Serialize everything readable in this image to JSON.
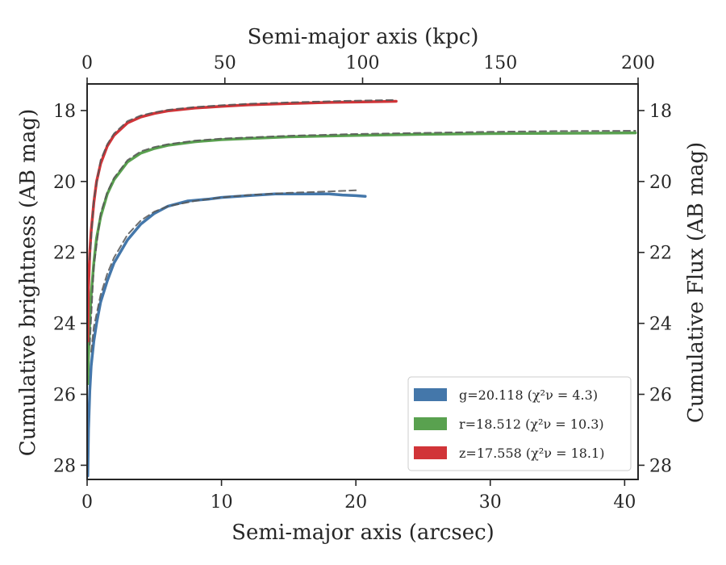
{
  "chart_data": {
    "type": "line",
    "xlabel_bottom": "Semi-major axis (arcsec)",
    "xlabel_top": "Semi-major axis (kpc)",
    "ylabel_left": "Cumulative brightness (AB mag)",
    "ylabel_right": "Cumulative Flux (AB mag)",
    "xlim": [
      0,
      41
    ],
    "ylim": [
      17.25,
      28.4
    ],
    "y_inverted": true,
    "top_xlim": [
      0,
      200
    ],
    "x_ticks": [
      0,
      10,
      20,
      30,
      40
    ],
    "y_ticks": [
      18,
      20,
      22,
      24,
      26,
      28
    ],
    "top_x_ticks": [
      0,
      50,
      100,
      150,
      200
    ],
    "grid": false,
    "legend_position": "lower-right",
    "series": [
      {
        "name": "g",
        "legend_label": "g=20.118",
        "legend_chi": "(χ²ν = 4.3)",
        "color": "#4477aa",
        "x": [
          0.05,
          0.1,
          0.2,
          0.3,
          0.5,
          0.7,
          1.0,
          1.5,
          2.0,
          3.0,
          4.0,
          5.0,
          6.0,
          7.5,
          9.0,
          10.0,
          12.0,
          14.0,
          16.0,
          18.0,
          19.0,
          20.0,
          20.7
        ],
        "y": [
          28.3,
          27.0,
          25.9,
          25.2,
          24.5,
          24.0,
          23.4,
          22.8,
          22.3,
          21.65,
          21.2,
          20.9,
          20.7,
          20.55,
          20.5,
          20.45,
          20.4,
          20.35,
          20.35,
          20.35,
          20.38,
          20.4,
          20.42
        ]
      },
      {
        "name": "g-model",
        "color": "#555555",
        "dashed": true,
        "x": [
          0.3,
          0.5,
          1.0,
          1.5,
          2.0,
          3.0,
          4.0,
          5.0,
          6.0,
          8.0,
          10.0,
          12.0,
          15.0,
          18.0,
          20.0
        ],
        "y": [
          24.8,
          24.1,
          23.2,
          22.6,
          22.15,
          21.5,
          21.1,
          20.85,
          20.7,
          20.55,
          20.45,
          20.38,
          20.32,
          20.28,
          20.25
        ]
      },
      {
        "name": "r",
        "legend_label": "r=18.512",
        "legend_chi": "(χ²ν = 10.3)",
        "color": "#59a14f",
        "x": [
          0.05,
          0.1,
          0.2,
          0.3,
          0.5,
          0.7,
          1.0,
          1.5,
          2.0,
          3.0,
          4.0,
          5.0,
          6.0,
          8.0,
          10.0,
          15.0,
          20.0,
          25.0,
          30.0,
          35.0,
          40.8
        ],
        "y": [
          25.7,
          24.9,
          23.9,
          23.2,
          22.3,
          21.6,
          21.0,
          20.35,
          19.95,
          19.45,
          19.2,
          19.07,
          18.98,
          18.88,
          18.82,
          18.74,
          18.7,
          18.67,
          18.65,
          18.64,
          18.63
        ]
      },
      {
        "name": "r-model",
        "color": "#555555",
        "dashed": true,
        "x": [
          0.2,
          0.5,
          1.0,
          1.5,
          2.0,
          3.0,
          4.0,
          5.0,
          6.0,
          8.0,
          10.0,
          15.0,
          20.0,
          25.0,
          30.0,
          35.0,
          40.8
        ],
        "y": [
          24.6,
          22.4,
          20.9,
          20.3,
          19.9,
          19.4,
          19.15,
          19.03,
          18.95,
          18.85,
          18.79,
          18.71,
          18.66,
          18.63,
          18.6,
          18.58,
          18.57
        ]
      },
      {
        "name": "z",
        "legend_label": "z=17.558",
        "legend_chi": "(χ²ν = 18.1)",
        "color": "#d13438",
        "x": [
          0.05,
          0.1,
          0.2,
          0.3,
          0.5,
          0.7,
          1.0,
          1.5,
          2.0,
          3.0,
          4.0,
          5.0,
          6.0,
          8.0,
          10.0,
          12.0,
          15.0,
          18.0,
          20.0,
          23.0
        ],
        "y": [
          24.5,
          23.0,
          22.0,
          21.4,
          20.6,
          20.0,
          19.5,
          19.0,
          18.7,
          18.35,
          18.18,
          18.08,
          18.01,
          17.93,
          17.88,
          17.84,
          17.8,
          17.77,
          17.76,
          17.74
        ]
      },
      {
        "name": "z-model",
        "color": "#555555",
        "dashed": true,
        "x": [
          0.2,
          0.5,
          1.0,
          1.5,
          2.0,
          3.0,
          4.0,
          5.0,
          6.0,
          8.0,
          10.0,
          12.0,
          15.0,
          18.0,
          20.0,
          23.0
        ],
        "y": [
          22.2,
          20.5,
          19.4,
          18.95,
          18.65,
          18.3,
          18.14,
          18.05,
          17.98,
          17.9,
          17.85,
          17.81,
          17.77,
          17.74,
          17.72,
          17.7
        ]
      }
    ]
  }
}
